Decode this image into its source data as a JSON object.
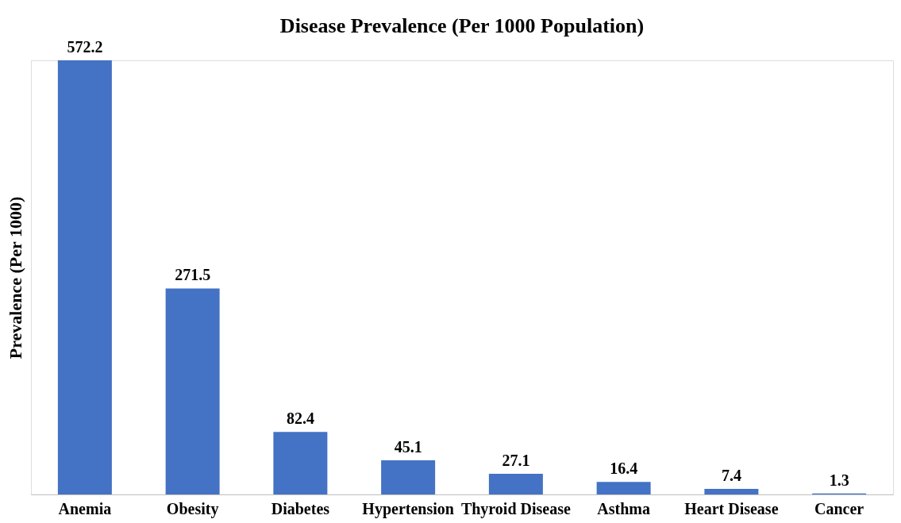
{
  "chart_data": {
    "type": "bar",
    "title": "Disease Prevalence (Per 1000 Population)",
    "ylabel": "Prevalence (Per 1000)",
    "categories": [
      "Anemia",
      "Obesity",
      "Diabetes",
      "Hypertension",
      "Thyroid Disease",
      "Asthma",
      "Heart Disease",
      "Cancer"
    ],
    "values": [
      572.2,
      271.5,
      82.4,
      45.1,
      27.1,
      16.4,
      7.4,
      1.3
    ],
    "color": "#4472c4",
    "data_labels": true,
    "grid": false,
    "tick_labels": "x"
  }
}
